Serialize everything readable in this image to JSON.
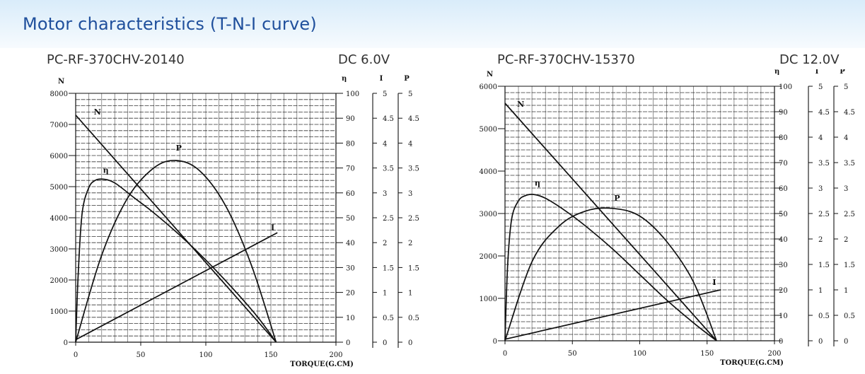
{
  "page": {
    "title": "Motor characteristics (T-N-I curve)"
  },
  "panels": [
    {
      "model": "PC-RF-370CHV-20140",
      "voltage": "DC 6.0V"
    },
    {
      "model": "PC-RF-370CHV-15370",
      "voltage": "DC 12.0V"
    }
  ],
  "colors": {
    "title": "#1f4f9c",
    "ink": "#111111",
    "banner": "#e3f1fb"
  },
  "chart_data": [
    {
      "type": "line",
      "title": "PC-RF-370CHV-20140",
      "subtitle": "DC 6.0V",
      "xlabel": "TORQUE(G.CM)",
      "x_ticks": [
        "0",
        "50",
        "100",
        "150",
        "200"
      ],
      "xlim": [
        0,
        200
      ],
      "axes": {
        "N": {
          "label": "N",
          "range": [
            0,
            8000
          ],
          "ticks": [
            "0",
            "1000",
            "2000",
            "3000",
            "4000",
            "5000",
            "6000",
            "7000",
            "8000"
          ]
        },
        "eta": {
          "label": "η",
          "range": [
            0,
            100
          ],
          "ticks": [
            "0",
            "10",
            "20",
            "30",
            "40",
            "50",
            "60",
            "70",
            "80",
            "90",
            "100"
          ]
        },
        "I": {
          "label": "I",
          "range": [
            0,
            5
          ],
          "ticks": [
            "0",
            "0.5",
            "1",
            "1.5",
            "2",
            "2.5",
            "3",
            "3.5",
            "4",
            "4.5",
            "5"
          ]
        },
        "P": {
          "label": "P",
          "range": [
            0,
            5
          ],
          "ticks": [
            "0",
            "0.5",
            "1",
            "1.5",
            "2",
            "2.5",
            "3",
            "3.5",
            "4",
            "4.5",
            "5"
          ]
        }
      },
      "grid": true,
      "series": [
        {
          "name": "N",
          "axis": "N",
          "x": [
            0,
            154
          ],
          "y": [
            7300,
            0
          ]
        },
        {
          "name": "η",
          "axis": "eta",
          "x": [
            0,
            2,
            5,
            10,
            15,
            21,
            30,
            45,
            60,
            80,
            100,
            120,
            140,
            154
          ],
          "y": [
            0,
            28,
            52,
            62,
            65,
            65.5,
            64,
            58,
            52,
            43,
            33,
            22,
            10,
            0
          ]
        },
        {
          "name": "P",
          "axis": "P",
          "x": [
            0,
            20,
            40,
            60,
            77,
            95,
            115,
            135,
            154
          ],
          "y": [
            0,
            1.75,
            2.9,
            3.5,
            3.65,
            3.45,
            2.75,
            1.55,
            0
          ]
        },
        {
          "name": "I",
          "axis": "I",
          "x": [
            0,
            155
          ],
          "y": [
            0.05,
            2.2
          ]
        }
      ]
    },
    {
      "type": "line",
      "title": "PC-RF-370CHV-15370",
      "subtitle": "DC 12.0V",
      "xlabel": "TORQUE(G.CM)",
      "x_ticks": [
        "0",
        "50",
        "100",
        "150",
        "200"
      ],
      "xlim": [
        0,
        200
      ],
      "axes": {
        "N": {
          "label": "N",
          "range": [
            0,
            6000
          ],
          "ticks": [
            "0",
            "1000",
            "2000",
            "3000",
            "4000",
            "5000",
            "6000"
          ]
        },
        "eta": {
          "label": "η",
          "range": [
            0,
            100
          ],
          "ticks": [
            "0",
            "10",
            "20",
            "30",
            "40",
            "50",
            "60",
            "70",
            "80",
            "90",
            "100"
          ]
        },
        "I": {
          "label": "I",
          "range": [
            0,
            5
          ],
          "ticks": [
            "0",
            "0.5",
            "1",
            "1.5",
            "2",
            "2.5",
            "3",
            "3.5",
            "4",
            "4.5",
            "5"
          ]
        },
        "P": {
          "label": "P",
          "range": [
            0,
            5
          ],
          "ticks": [
            "0",
            "0.5",
            "1",
            "1.5",
            "2",
            "2.5",
            "3",
            "3.5",
            "4",
            "4.5",
            "5"
          ]
        }
      },
      "grid": true,
      "series": [
        {
          "name": "N",
          "axis": "N",
          "x": [
            0,
            157
          ],
          "y": [
            5600,
            0
          ]
        },
        {
          "name": "η",
          "axis": "eta",
          "x": [
            0,
            2,
            5,
            10,
            15,
            21,
            30,
            45,
            60,
            80,
            100,
            120,
            140,
            157
          ],
          "y": [
            0,
            30,
            48,
            55,
            57,
            57.5,
            56,
            51,
            45,
            36,
            26,
            16,
            7,
            0
          ]
        },
        {
          "name": "P",
          "axis": "P",
          "x": [
            0,
            20,
            40,
            60,
            80,
            100,
            120,
            140,
            157
          ],
          "y": [
            0,
            1.55,
            2.25,
            2.55,
            2.6,
            2.45,
            1.95,
            1.15,
            0
          ]
        },
        {
          "name": "I",
          "axis": "I",
          "x": [
            0,
            160
          ],
          "y": [
            0.03,
            1.0
          ]
        }
      ]
    }
  ]
}
